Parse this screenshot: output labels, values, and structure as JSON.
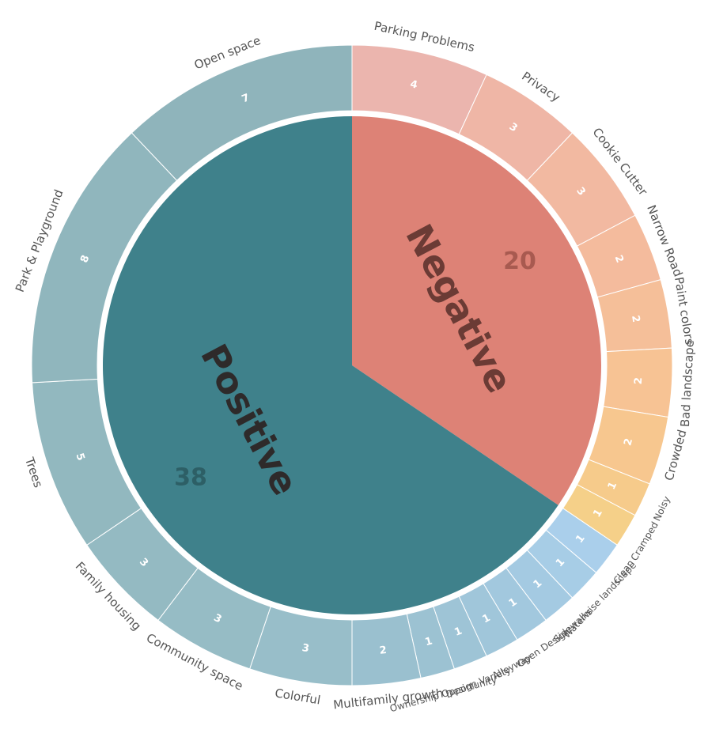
{
  "chart_data": {
    "type": "sunburst",
    "groups": [
      {
        "name": "Negative",
        "value": 20,
        "color": "#dd8276",
        "label_color": "#6b3b35",
        "value_color": "#a85a50",
        "children": [
          {
            "name": "Parking Problems",
            "value": 4,
            "color": "#ebb5ae"
          },
          {
            "name": "Privacy",
            "value": 3,
            "color": "#efb6a6"
          },
          {
            "name": "Cookie Cutter",
            "value": 3,
            "color": "#f2b9a1"
          },
          {
            "name": "Narrow Road",
            "value": 2,
            "color": "#f4bb9d"
          },
          {
            "name": "Paint colors",
            "value": 2,
            "color": "#f5bf99"
          },
          {
            "name": "Bad landscape",
            "value": 2,
            "color": "#f7c394"
          },
          {
            "name": "Crowded",
            "value": 2,
            "color": "#f7c78f"
          },
          {
            "name": "Noisy",
            "value": 1,
            "color": "#f6cb8b"
          },
          {
            "name": "Cramped",
            "value": 1,
            "color": "#f5d089"
          }
        ]
      },
      {
        "name": "Positive",
        "value": 38,
        "color": "#3f818b",
        "label_color": "#2e2a2a",
        "value_color": "#2d5f66",
        "children": [
          {
            "name": "Clean",
            "value": 1,
            "color": "#aacfeb"
          },
          {
            "name": "Waterwise landscape",
            "value": 1,
            "color": "#a7cde6"
          },
          {
            "name": "Sidewalks",
            "value": 1,
            "color": "#a4cae2"
          },
          {
            "name": "Open Design",
            "value": 1,
            "color": "#a2c8de"
          },
          {
            "name": "Alleyway",
            "value": 1,
            "color": "#a0c6da"
          },
          {
            "name": "Design Variety",
            "value": 1,
            "color": "#9ec4d6"
          },
          {
            "name": "Ownership Opportunity",
            "value": 1,
            "color": "#9cc2d2"
          },
          {
            "name": "Multifamily growth",
            "value": 2,
            "color": "#9ac0cf"
          },
          {
            "name": "Colorful",
            "value": 3,
            "color": "#98bec9"
          },
          {
            "name": "Community space",
            "value": 3,
            "color": "#96bcc5"
          },
          {
            "name": "Family housing",
            "value": 3,
            "color": "#94bac2"
          },
          {
            "name": "Trees",
            "value": 5,
            "color": "#92b8bf"
          },
          {
            "name": "Park & Playground",
            "value": 8,
            "color": "#90b6bd"
          },
          {
            "name": "Open space",
            "value": 7,
            "color": "#8fb4bb"
          }
        ]
      }
    ]
  }
}
